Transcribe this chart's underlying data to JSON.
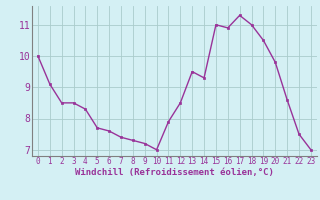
{
  "x": [
    0,
    1,
    2,
    3,
    4,
    5,
    6,
    7,
    8,
    9,
    10,
    11,
    12,
    13,
    14,
    15,
    16,
    17,
    18,
    19,
    20,
    21,
    22,
    23
  ],
  "y": [
    10.0,
    9.1,
    8.5,
    8.5,
    8.3,
    7.7,
    7.6,
    7.4,
    7.3,
    7.2,
    7.0,
    7.9,
    8.5,
    9.5,
    9.3,
    11.0,
    10.9,
    11.3,
    11.0,
    10.5,
    9.8,
    8.6,
    7.5,
    7.0
  ],
  "line_color": "#993399",
  "marker_color": "#993399",
  "bg_color": "#d4f0f4",
  "grid_color": "#aacccc",
  "xlabel": "Windchill (Refroidissement éolien,°C)",
  "xlabel_color": "#993399",
  "tick_color": "#993399",
  "spine_color": "#808080",
  "xlim": [
    -0.5,
    23.5
  ],
  "ylim": [
    6.8,
    11.6
  ],
  "yticks": [
    7,
    8,
    9,
    10,
    11
  ],
  "xticks": [
    0,
    1,
    2,
    3,
    4,
    5,
    6,
    7,
    8,
    9,
    10,
    11,
    12,
    13,
    14,
    15,
    16,
    17,
    18,
    19,
    20,
    21,
    22,
    23
  ],
  "tick_fontsize": 5.5,
  "ytick_fontsize": 7.0,
  "xlabel_fontsize": 6.5
}
